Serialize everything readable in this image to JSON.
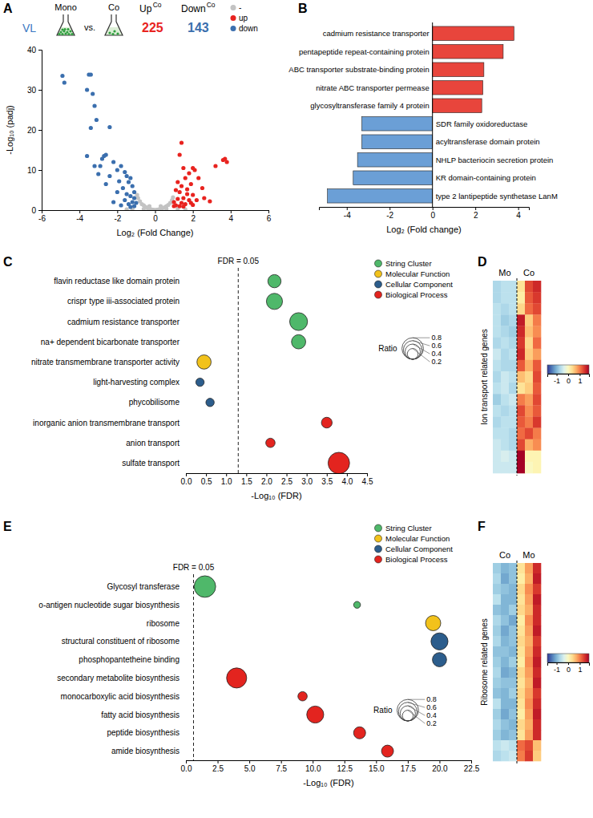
{
  "chart_data": [
    {
      "panel": "A",
      "type": "scatter",
      "header": {
        "group": "VL",
        "left": "Mono",
        "middle": "vs.",
        "right": "Co",
        "up_label": "Up",
        "up_sup": "Co",
        "up_count": 225,
        "down_label": "Down",
        "down_sup": "Co",
        "down_count": 143
      },
      "xlabel": "Log₂ (Fold Change)",
      "ylabel": "-Log₁₀ (padj)",
      "xlim": [
        -6,
        6
      ],
      "ylim": [
        0,
        40
      ],
      "xticks": [
        -6,
        -4,
        -2,
        0,
        2,
        4,
        6
      ],
      "yticks": [
        0,
        10,
        20,
        30,
        40
      ],
      "legend": "top right",
      "series": [
        {
          "name": "-",
          "color": "#c3c3c3",
          "x": [
            -0.9,
            -0.8,
            -0.7,
            -0.6,
            -0.5,
            -0.4,
            -0.3,
            -0.2,
            -0.1,
            0,
            0.1,
            0.2,
            0.3,
            0.4,
            0.5,
            0.6,
            0.7,
            0.8,
            0.9,
            0.95,
            -0.95,
            -1.2,
            1.2,
            -1.5,
            1.6,
            -0.6,
            0.6,
            0.3,
            -0.3
          ],
          "values": [
            3,
            2.2,
            1.5,
            1.2,
            0.8,
            0.5,
            0.3,
            0.2,
            0.1,
            0.05,
            0.1,
            0.2,
            0.3,
            0.5,
            0.7,
            1,
            1.3,
            1.8,
            2.5,
            3.2,
            3.8,
            0.3,
            0.3,
            0.2,
            0.2,
            0.3,
            0.3,
            1,
            1
          ]
        },
        {
          "name": "up",
          "color": "#e8231f",
          "x": [
            1.4,
            1.3,
            3.6,
            3.7,
            3.8,
            3.2,
            2.0,
            2.1,
            1.8,
            1.5,
            2.3,
            1.6,
            1.2,
            1.4,
            1.9,
            2.5,
            1.1,
            1.3,
            1.7,
            2.0,
            1.5,
            1.2,
            1.8,
            2.2,
            1.0,
            1.4,
            1.6,
            2.0,
            1.1,
            1.3,
            2.6,
            1.7,
            1.0,
            1.5,
            2.9,
            1.9
          ],
          "values": [
            16.8,
            13.8,
            12.5,
            12.8,
            12,
            11,
            10.5,
            10,
            9.2,
            10.5,
            8,
            8,
            7,
            6,
            6.5,
            5.5,
            5,
            4.5,
            4,
            3.8,
            3,
            2.8,
            2.5,
            2.5,
            2,
            1.8,
            1.5,
            1.3,
            1.2,
            1,
            3,
            5.2,
            1,
            0.9,
            2.2,
            1.8
          ]
        },
        {
          "name": "down",
          "color": "#3b6fae",
          "x": [
            -4.9,
            -4.8,
            -3.5,
            -3.4,
            -3.6,
            -3.3,
            -3.2,
            -3.1,
            -3.4,
            -2.4,
            -3.6,
            -2.7,
            -2.6,
            -2.8,
            -2.9,
            -3.2,
            -2.2,
            -2.0,
            -1.8,
            -1.6,
            -1.5,
            -1.3,
            -1.9,
            -2.4,
            -1.4,
            -1.2,
            -1.7,
            -1.1,
            -1.5,
            -2.0,
            -1.3,
            -1.1,
            -1.6,
            -1.2,
            -1.0,
            -1.4,
            -1.8,
            -1.1,
            -2.2,
            -1.3,
            -3.0,
            -2.6
          ],
          "values": [
            33.5,
            31.8,
            33.8,
            33.8,
            30,
            29,
            26,
            22.5,
            20.5,
            20.7,
            13.5,
            13.5,
            13.8,
            12.8,
            11,
            11,
            12,
            10,
            11,
            9.5,
            8.5,
            8,
            7.2,
            8.5,
            7,
            6,
            5.5,
            4.5,
            4,
            4.5,
            3.5,
            3,
            2.5,
            2,
            1.8,
            1.5,
            1.2,
            1,
            2,
            0.8,
            9,
            6.5
          ]
        }
      ]
    },
    {
      "panel": "B",
      "type": "bar",
      "orientation": "horizontal",
      "categories": [
        "cadmium resistance transporter",
        "pentapeptide repeat-containing protein",
        "ABC transporter substrate-binding protein",
        "nitrate ABC transporter permease",
        "glycosyltransferase family 4 protein",
        "SDR family oxidoreductase",
        "acyltransferase domain protein",
        "NHLP bacteriocin secretion protein",
        "KR domain-containing protein",
        "type 2 lantipeptide synthetase LanM"
      ],
      "values": [
        3.8,
        3.3,
        2.4,
        2.35,
        2.3,
        -3.3,
        -3.3,
        -3.5,
        -3.7,
        -4.9
      ],
      "colors": [
        "#e8453c",
        "#e8453c",
        "#e8453c",
        "#e8453c",
        "#e8453c",
        "#6b9fd6",
        "#6b9fd6",
        "#6b9fd6",
        "#6b9fd6",
        "#6b9fd6"
      ],
      "xlabel": "Log₂ (Fold change)",
      "xlim": [
        -5.3,
        4.5
      ],
      "xticks": [
        -4,
        -2,
        0,
        2,
        4
      ]
    },
    {
      "panel": "C",
      "type": "scatter",
      "categories": [
        "flavin reductase like domain protein",
        "crispr type iii-associated protein",
        "cadmium resistance transporter",
        "na+ dependent bicarbonate transporter",
        "nitrate transmembrane transporter activity",
        "light-harvesting complex",
        "phycobilisome",
        "inorganic anion transmembrane transport",
        "anion transport",
        "sulfate transport"
      ],
      "xlabel": "-Log₁₀ (FDR)",
      "xlim": [
        0,
        4.5
      ],
      "xticks": [
        {
          "value": 0,
          "label": "0.0"
        },
        0.5,
        {
          "value": 1,
          "label": "1.0"
        },
        1.5,
        {
          "value": 2,
          "label": "2.0"
        },
        2.5,
        {
          "value": 3,
          "label": "3.0"
        },
        3.5,
        {
          "value": 4,
          "label": "4.0"
        },
        4.5
      ],
      "legend": "top right",
      "reference_line": {
        "value": 1.3,
        "label": "FDR = 0.05"
      },
      "size_legend": {
        "title": "Ratio",
        "values": [
          0.8,
          0.6,
          0.4,
          0.2
        ]
      },
      "series": [
        {
          "name": "String Cluster",
          "color": "#4fb86a",
          "values": [
            2.2,
            2.2,
            2.8,
            2.8,
            null,
            null,
            null,
            null,
            null,
            null
          ],
          "sizes": [
            0.3,
            0.45,
            0.55,
            0.35,
            null,
            null,
            null,
            null,
            null,
            null
          ]
        },
        {
          "name": "Molecular Function",
          "color": "#f2c21b",
          "values": [
            null,
            null,
            null,
            null,
            0.45,
            null,
            null,
            null,
            null,
            null
          ],
          "sizes": [
            null,
            null,
            null,
            null,
            0.35,
            null,
            null,
            null,
            null,
            null
          ]
        },
        {
          "name": "Cellular Component",
          "color": "#2c5d8c",
          "values": [
            null,
            null,
            null,
            null,
            null,
            0.35,
            0.6,
            null,
            null,
            null
          ],
          "sizes": [
            null,
            null,
            null,
            null,
            null,
            0.12,
            0.12,
            null,
            null,
            null
          ]
        },
        {
          "name": "Biological Process",
          "color": "#e3241f",
          "values": [
            null,
            null,
            null,
            null,
            null,
            null,
            null,
            3.5,
            2.1,
            3.8
          ],
          "sizes": [
            null,
            null,
            null,
            null,
            null,
            null,
            null,
            0.2,
            0.15,
            0.8
          ]
        }
      ]
    },
    {
      "panel": "D",
      "type": "heatmap",
      "row_label": "Ion transport related genes",
      "columns": [
        "Mo",
        "Mo",
        "Mo",
        "Co",
        "Co",
        "Co"
      ],
      "colorbar": {
        "range": [
          -1.8,
          1.8
        ],
        "ticks": [
          -1,
          0,
          1
        ]
      },
      "cells": [
        [
          -0.7,
          -0.6,
          -0.6,
          0.3,
          1.3,
          1.5
        ],
        [
          -0.7,
          -0.6,
          -0.6,
          0.2,
          1.2,
          1.4
        ],
        [
          -0.6,
          -0.7,
          -0.6,
          0.4,
          1.1,
          1.3
        ],
        [
          -0.6,
          -0.8,
          -0.7,
          1.6,
          0.5,
          1.0
        ],
        [
          -0.6,
          -0.7,
          -0.8,
          1.5,
          0.6,
          0.9
        ],
        [
          -0.7,
          -0.6,
          -0.7,
          1.4,
          0.4,
          1.1
        ],
        [
          -0.5,
          -0.7,
          -0.6,
          1.5,
          0.5,
          0.8
        ],
        [
          -0.6,
          -0.7,
          -0.7,
          1.2,
          0.7,
          1.2
        ],
        [
          -0.7,
          -0.5,
          -0.6,
          0.6,
          0.4,
          1.3
        ],
        [
          -0.6,
          -0.5,
          -0.7,
          0.3,
          0.5,
          1.2
        ],
        [
          -0.8,
          -0.6,
          -0.5,
          1.0,
          0.8,
          1.3
        ],
        [
          -0.6,
          -0.7,
          -0.6,
          1.3,
          0.9,
          1.2
        ],
        [
          -0.7,
          -0.6,
          -0.6,
          1.2,
          1.0,
          1.4
        ],
        [
          -0.6,
          -0.6,
          -0.7,
          1.1,
          1.3,
          1.0
        ],
        [
          -0.5,
          -0.6,
          -0.7,
          1.3,
          0.7,
          0.9
        ],
        [
          -0.5,
          -0.4,
          -0.5,
          1.8,
          0.1,
          0.1
        ],
        [
          -0.5,
          -0.5,
          -0.5,
          1.8,
          0.0,
          0.1
        ]
      ]
    },
    {
      "panel": "E",
      "type": "scatter",
      "categories": [
        "Glycosyl transferase",
        "o-antigen nucleotide sugar biosynthesis",
        "ribosome",
        "structural constituent of ribosome",
        "phosphopantetheine binding",
        "secondary metabolite biosynthesis",
        "monocarboxylic acid biosynthesis",
        "fatty acid biosynthesis",
        "peptide biosynthesis",
        "amide biosynthesis"
      ],
      "xlabel": "-Log₁₀ (FDR)",
      "xlim": [
        0,
        22.5
      ],
      "xticks": [
        {
          "value": 0,
          "label": "0.0"
        },
        2.5,
        {
          "value": 5,
          "label": "5.0"
        },
        7.5,
        {
          "value": 10,
          "label": "10.0"
        },
        12.5,
        {
          "value": 15,
          "label": "15.0"
        },
        17.5,
        {
          "value": 20,
          "label": "20.0"
        },
        22.5
      ],
      "legend": "top right",
      "reference_line": {
        "value": 0.6,
        "label": "FDR = 0.05"
      },
      "size_legend": {
        "title": "Ratio",
        "values": [
          0.8,
          0.6,
          0.4,
          0.2
        ]
      },
      "series": [
        {
          "name": "String Cluster",
          "color": "#4fb86a",
          "values": [
            1.5,
            13.5,
            null,
            null,
            null,
            null,
            null,
            null,
            null,
            null
          ],
          "sizes": [
            0.8,
            0.08,
            null,
            null,
            null,
            null,
            null,
            null,
            null,
            null
          ]
        },
        {
          "name": "Molecular Function",
          "color": "#f2c21b",
          "values": [
            null,
            null,
            19.5,
            null,
            null,
            null,
            null,
            null,
            null,
            null
          ],
          "sizes": [
            null,
            null,
            0.4,
            null,
            null,
            null,
            null,
            null,
            null,
            null
          ]
        },
        {
          "name": "Cellular Component",
          "color": "#2c5d8c",
          "values": [
            null,
            null,
            null,
            20,
            20,
            null,
            null,
            null,
            null,
            null
          ],
          "sizes": [
            null,
            null,
            null,
            0.5,
            0.35,
            null,
            null,
            null,
            null,
            null
          ]
        },
        {
          "name": "Biological Process",
          "color": "#e3241f",
          "values": [
            null,
            null,
            null,
            null,
            null,
            4,
            9.2,
            10.2,
            13.7,
            15.9
          ],
          "sizes": [
            null,
            null,
            null,
            null,
            null,
            0.7,
            0.15,
            0.5,
            0.25,
            0.25
          ]
        }
      ]
    },
    {
      "panel": "F",
      "type": "heatmap",
      "row_label": "Ribosome related genes",
      "columns": [
        "Co",
        "Co",
        "Co",
        "Mo",
        "Mo",
        "Mo"
      ],
      "colorbar": {
        "range": [
          -1.8,
          1.8
        ],
        "ticks": [
          -1,
          0,
          1
        ]
      },
      "cells": [
        [
          -0.8,
          -1.0,
          -0.9,
          0.3,
          0.8,
          1.5
        ],
        [
          -0.7,
          -1.1,
          -0.9,
          0.2,
          0.7,
          1.6
        ],
        [
          -0.8,
          -0.9,
          -1.0,
          0.4,
          0.9,
          1.4
        ],
        [
          -0.6,
          -1.0,
          -1.0,
          0.3,
          0.8,
          1.6
        ],
        [
          -0.9,
          -1.0,
          -0.8,
          0.4,
          0.7,
          1.5
        ],
        [
          -0.7,
          -0.9,
          -1.1,
          0.2,
          0.9,
          1.5
        ],
        [
          -0.8,
          -1.1,
          -0.9,
          0.3,
          0.8,
          1.6
        ],
        [
          -0.7,
          -1.0,
          -0.9,
          0.4,
          0.7,
          1.4
        ],
        [
          -0.9,
          -0.9,
          -1.0,
          0.3,
          0.8,
          1.5
        ],
        [
          -0.8,
          -1.0,
          -0.8,
          0.2,
          0.9,
          1.6
        ],
        [
          -0.7,
          -1.1,
          -1.0,
          0.4,
          0.8,
          1.5
        ],
        [
          -0.8,
          -0.9,
          -0.9,
          0.3,
          0.7,
          1.6
        ],
        [
          -0.9,
          -1.0,
          -0.8,
          0.4,
          0.8,
          1.4
        ],
        [
          -0.6,
          -1.0,
          -1.0,
          0.3,
          0.9,
          1.5
        ],
        [
          -0.8,
          -1.1,
          -0.9,
          0.2,
          0.8,
          1.6
        ],
        [
          -0.7,
          -0.9,
          -1.0,
          0.4,
          0.7,
          1.5
        ],
        [
          -0.8,
          -1.0,
          -0.9,
          0.3,
          0.8,
          1.5
        ],
        [
          -0.6,
          -0.5,
          -0.6,
          1.1,
          1.3,
          0.6
        ],
        [
          -0.7,
          -0.6,
          -0.5,
          1.0,
          1.4,
          0.5
        ]
      ]
    }
  ]
}
